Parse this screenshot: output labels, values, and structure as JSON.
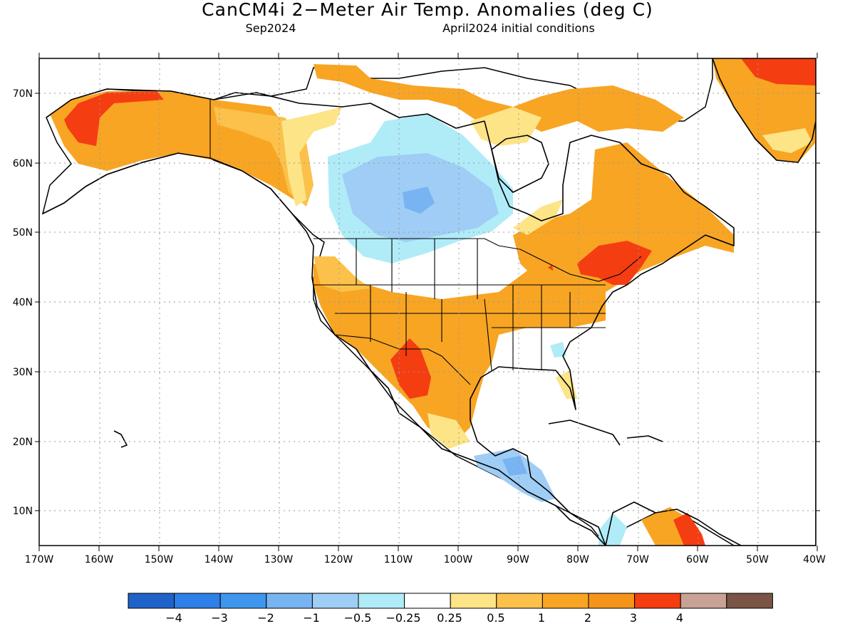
{
  "title": "CanCM4i 2−Meter Air Temp. Anomalies (deg C)",
  "subtitle_left": "Sep2024",
  "subtitle_right": "April2024 initial conditions",
  "lon_ticks": [
    "170W",
    "160W",
    "150W",
    "140W",
    "130W",
    "120W",
    "110W",
    "100W",
    "90W",
    "80W",
    "70W",
    "60W",
    "50W",
    "40W"
  ],
  "lat_ticks": [
    "70N",
    "60N",
    "50N",
    "40N",
    "30N",
    "20N",
    "10N"
  ],
  "colors": {
    "ocean": "#ffffff",
    "coast": "#000000",
    "grid": "#999999"
  },
  "legend": {
    "boxes": [
      "#1f63c8",
      "#2f7fe8",
      "#3f96ee",
      "#78b4f2",
      "#9fcdf5",
      "#b0ecf8",
      "#ffffff",
      "#fde487",
      "#fbc14a",
      "#f8a523",
      "#f6941a",
      "#f53d12",
      "#c7a295",
      "#7a5546"
    ],
    "labels": [
      "−4",
      "−3",
      "−2",
      "−1",
      "−0.5",
      "−0.25",
      "0.25",
      "0.5",
      "1",
      "2",
      "3",
      "4"
    ]
  }
}
